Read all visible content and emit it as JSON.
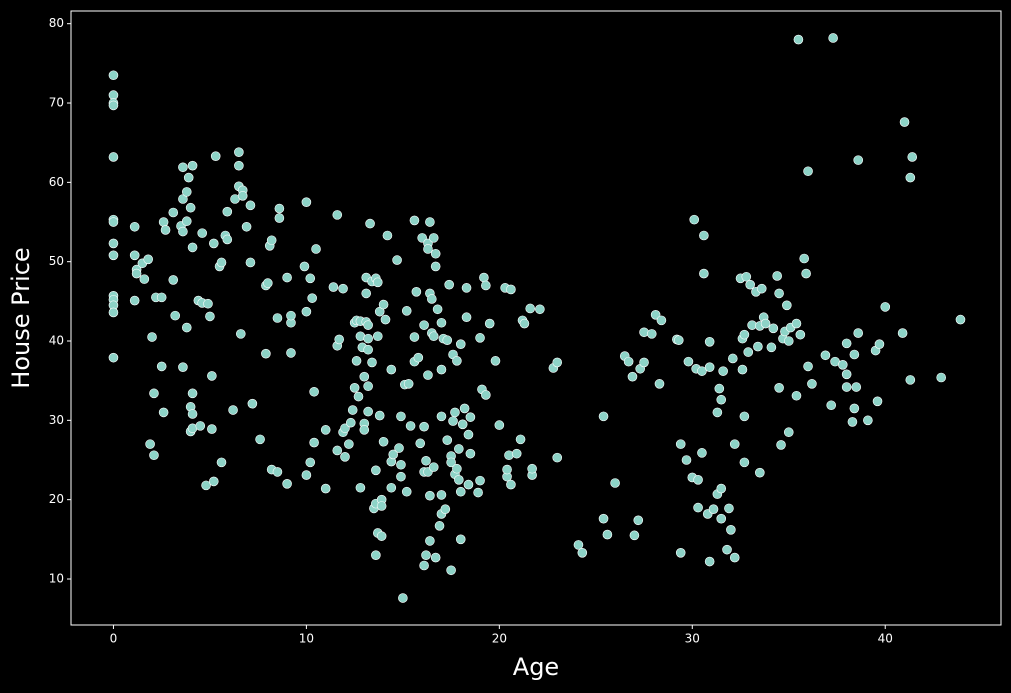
{
  "chart_data": {
    "type": "scatter",
    "x_label": "Age",
    "y_label": "House Price",
    "color": "#8dd3c7",
    "edge_color": "#ffffff",
    "xlim": [
      -2.2,
      46.0
    ],
    "ylim": [
      4.2,
      81.6
    ],
    "xticks": [
      0,
      10,
      20,
      30,
      40
    ],
    "yticks": [
      10,
      20,
      30,
      40,
      50,
      60,
      70,
      80
    ],
    "x": [
      0,
      0,
      0,
      0,
      0,
      0,
      0,
      0,
      0,
      0,
      0,
      0,
      0,
      0,
      1.1,
      1.1,
      1.2,
      1.2,
      1.1,
      1.5,
      1.6,
      1.8,
      1.9,
      2,
      2.1,
      2.1,
      2.2,
      2.5,
      2.5,
      2.6,
      2.6,
      2.7,
      3.1,
      3.1,
      3.2,
      3.5,
      3.6,
      3.6,
      3.6,
      3.6,
      3.8,
      3.8,
      3.8,
      3.9,
      4,
      4,
      4,
      4.1,
      4.1,
      4.1,
      4.1,
      4.1,
      4.4,
      4.5,
      4.6,
      4.6,
      4.8,
      4.9,
      5,
      5.1,
      5.1,
      5.2,
      5.2,
      5.3,
      5.5,
      5.6,
      5.6,
      5.8,
      5.9,
      5.9,
      6.2,
      6.3,
      6.5,
      6.5,
      6.5,
      6.6,
      6.7,
      6.7,
      6.9,
      7.1,
      7.1,
      7.2,
      7.6,
      7.9,
      7.9,
      8,
      8.1,
      8.2,
      8.2,
      8.5,
      8.5,
      8.6,
      8.6,
      9,
      9,
      9.2,
      9.2,
      9.2,
      9.9,
      10,
      10,
      10,
      10.2,
      10.3,
      10.2,
      10.4,
      10.5,
      10.4,
      11,
      11,
      11.4,
      11.6,
      11.6,
      11.6,
      11.7,
      11.9,
      11.9,
      12,
      12,
      12.2,
      12.3,
      12.4,
      12.5,
      12.5,
      12.6,
      12.6,
      12.7,
      12.8,
      12.8,
      12.8,
      12.9,
      13,
      13,
      13,
      13.1,
      13.1,
      13.2,
      13.1,
      13.2,
      13.2,
      13.2,
      13.2,
      13.3,
      13.4,
      13.4,
      13.5,
      13.6,
      13.6,
      13.6,
      13.6,
      13.7,
      13.7,
      13.7,
      13.8,
      13.8,
      13.9,
      13.9,
      13.9,
      14,
      14,
      14.1,
      14.2,
      14.4,
      14.4,
      14.4,
      14.5,
      14.7,
      14.8,
      14.9,
      14.9,
      14.9,
      15,
      15.1,
      15.2,
      15.2,
      15.3,
      15.4,
      15.6,
      15.6,
      15.6,
      15.7,
      15.8,
      15.9,
      16,
      16.1,
      16.1,
      16.1,
      16.1,
      16.2,
      16.2,
      16.3,
      16.3,
      16.3,
      16.3,
      16.4,
      16.4,
      16.4,
      16.4,
      16.5,
      16.5,
      16.6,
      16.6,
      16.6,
      16.7,
      16.7,
      16.7,
      16.8,
      16.9,
      17,
      17,
      17,
      17,
      17,
      17.1,
      17.2,
      17.3,
      17.3,
      17.4,
      17.5,
      17.5,
      17.5,
      17.6,
      17.6,
      17.7,
      17.7,
      17.8,
      17.8,
      17.9,
      17.9,
      18,
      18,
      18,
      18.1,
      18.2,
      18.3,
      18.3,
      18.4,
      18.4,
      18.5,
      18.5,
      18.9,
      19,
      19,
      19.1,
      19.2,
      19.3,
      19.3,
      19.5,
      19.8,
      20,
      20.3,
      20.4,
      20.4,
      20.6,
      20.5,
      20.6,
      20.9,
      21.1,
      21.2,
      21.3,
      21.6,
      21.7,
      21.7,
      22.1,
      22.8,
      23,
      23,
      24.1,
      24.3,
      25.4,
      25.4,
      25.6,
      26,
      26.5,
      26.7,
      26.9,
      27,
      27.2,
      27.3,
      27.5,
      27.5,
      27.9,
      28.1,
      28.3,
      28.4,
      29.2,
      29.3,
      29.4,
      29.4,
      29.7,
      29.8,
      30,
      30.1,
      30.2,
      30.3,
      30.3,
      30.5,
      30.5,
      30.6,
      30.6,
      30.8,
      30.9,
      30.9,
      30.9,
      31.1,
      31.3,
      31.3,
      31.4,
      31.5,
      31.5,
      31.5,
      31.6,
      31.8,
      31.9,
      32,
      32.2,
      32.2,
      32.1,
      32.5,
      32.6,
      32.6,
      32.7,
      32.8,
      32.7,
      32.7,
      32.9,
      33,
      33.1,
      33.3,
      33.4,
      33.5,
      33.5,
      33.6,
      33.7,
      33.8,
      34.1,
      34.2,
      34.4,
      34.5,
      34.5,
      34.6,
      34.7,
      34.8,
      34.9,
      35,
      35,
      35.1,
      35.4,
      35.4,
      35.5,
      35.6,
      35.8,
      35.9,
      36,
      36,
      36.2,
      36.9,
      37.2,
      37.3,
      37.4,
      37.8,
      38,
      38,
      38,
      38.3,
      38.4,
      38.4,
      38.5,
      38.6,
      38.6,
      39.1,
      39.5,
      39.6,
      39.7,
      40,
      40.9,
      41,
      41.3,
      41.4,
      41.3,
      42.9,
      43.9
    ],
    "values": [
      73.5,
      71,
      70,
      69.7,
      63.2,
      55.3,
      55,
      52.3,
      50.8,
      45.7,
      45.2,
      44.5,
      43.6,
      37.9,
      54.4,
      50.8,
      49,
      48.5,
      45.1,
      49.8,
      47.8,
      50.3,
      27,
      40.5,
      25.6,
      33.4,
      45.5,
      45.5,
      36.8,
      55,
      31,
      54,
      56.2,
      47.7,
      43.2,
      54.5,
      57.9,
      53.8,
      36.7,
      61.9,
      58.8,
      55.1,
      41.7,
      60.6,
      56.8,
      31.7,
      28.6,
      33.4,
      30.8,
      29,
      62.1,
      51.8,
      45.1,
      29.3,
      53.6,
      44.8,
      21.8,
      44.7,
      43.1,
      28.9,
      35.6,
      22.3,
      52.3,
      63.3,
      49.4,
      49.9,
      24.7,
      53.3,
      52.8,
      56.3,
      31.3,
      57.9,
      59.5,
      62.1,
      63.8,
      40.9,
      59,
      58.3,
      54.4,
      49.9,
      57.1,
      32.1,
      27.6,
      38.4,
      47,
      47.3,
      52,
      23.8,
      52.7,
      42.9,
      23.5,
      56.7,
      55.5,
      48,
      22,
      38.5,
      42.3,
      43.2,
      49.4,
      57.5,
      43.7,
      23.1,
      47.9,
      45.4,
      24.7,
      27.2,
      51.6,
      33.6,
      21.4,
      28.8,
      46.8,
      26.2,
      39.4,
      55.9,
      40.2,
      46.6,
      28.5,
      25.4,
      29,
      27,
      29.7,
      31.3,
      42.3,
      34.1,
      42.6,
      37.5,
      33,
      42.5,
      21.5,
      40.6,
      39.2,
      35.5,
      29.6,
      28.8,
      42.4,
      46,
      38.9,
      48,
      42,
      40.3,
      34.3,
      31.1,
      54.8,
      47.5,
      37.3,
      18.9,
      23.7,
      19.5,
      13,
      47.9,
      40.6,
      47.4,
      15.8,
      43.7,
      30.6,
      15.4,
      20,
      19.2,
      44.6,
      27.3,
      42.7,
      53.3,
      36.4,
      24.8,
      21.5,
      25.7,
      50.2,
      26.5,
      30.5,
      24.4,
      22.9,
      7.6,
      34.5,
      21,
      43.8,
      34.6,
      29.3,
      55.2,
      40.5,
      37.4,
      46.2,
      37.9,
      27.1,
      53,
      11.7,
      23.5,
      29.2,
      42,
      13,
      24.9,
      52.3,
      51.6,
      35.7,
      23.5,
      20.5,
      14.8,
      46,
      55,
      45.3,
      41,
      40.6,
      53,
      24.1,
      12.7,
      49.4,
      51,
      44,
      16.7,
      18.2,
      20.6,
      42.3,
      36.4,
      30.5,
      40.3,
      18.8,
      40.1,
      27.5,
      47.1,
      11.1,
      25.5,
      24.7,
      29.9,
      38.3,
      31,
      23.2,
      23.9,
      37.5,
      26.4,
      22.5,
      15,
      39.6,
      21,
      29.5,
      31.5,
      46.7,
      43,
      21.9,
      28.2,
      25.8,
      30.4,
      20.9,
      40.4,
      22.4,
      33.9,
      48,
      47,
      33.2,
      42.2,
      37.5,
      29.4,
      46.7,
      22.9,
      23.8,
      46.5,
      25.6,
      21.9,
      25.8,
      27.6,
      42.6,
      42.2,
      44.1,
      23.1,
      23.9,
      44,
      36.6,
      37.3,
      25.3,
      14.3,
      13.3,
      30.5,
      17.6,
      15.6,
      22.1,
      38.1,
      37.4,
      35.5,
      15.5,
      17.4,
      36.5,
      41.1,
      37.3,
      40.9,
      43.3,
      34.6,
      42.6,
      40.2,
      40.1,
      27,
      13.3,
      25,
      37.4,
      22.8,
      55.3,
      36.5,
      22.5,
      19,
      36.2,
      25.9,
      53.3,
      48.5,
      18.2,
      36.7,
      39.9,
      12.2,
      18.8,
      20.7,
      31,
      34,
      21.4,
      17.6,
      32.6,
      36.2,
      13.7,
      18.9,
      16.2,
      12.7,
      27,
      37.8,
      47.9,
      40.3,
      36.4,
      40.8,
      48.1,
      30.5,
      24.7,
      38.6,
      47.1,
      42,
      46.2,
      39.3,
      41.9,
      23.4,
      46.6,
      43,
      42.2,
      39.2,
      41.6,
      48.2,
      34.1,
      46,
      26.9,
      40.3,
      41.2,
      44.5,
      28.5,
      40,
      41.7,
      42.2,
      33.1,
      78,
      40.8,
      50.4,
      48.5,
      61.4,
      36.8,
      34.6,
      38.2,
      31.9,
      78.2,
      37.4,
      37,
      39.7,
      34.2,
      35.8,
      29.8,
      31.5,
      38.3,
      34.2,
      41,
      62.8,
      30,
      38.8,
      32.4,
      39.6,
      44.3,
      41,
      67.6,
      60.6,
      63.2,
      35.1,
      35.4,
      42.7
    ]
  }
}
